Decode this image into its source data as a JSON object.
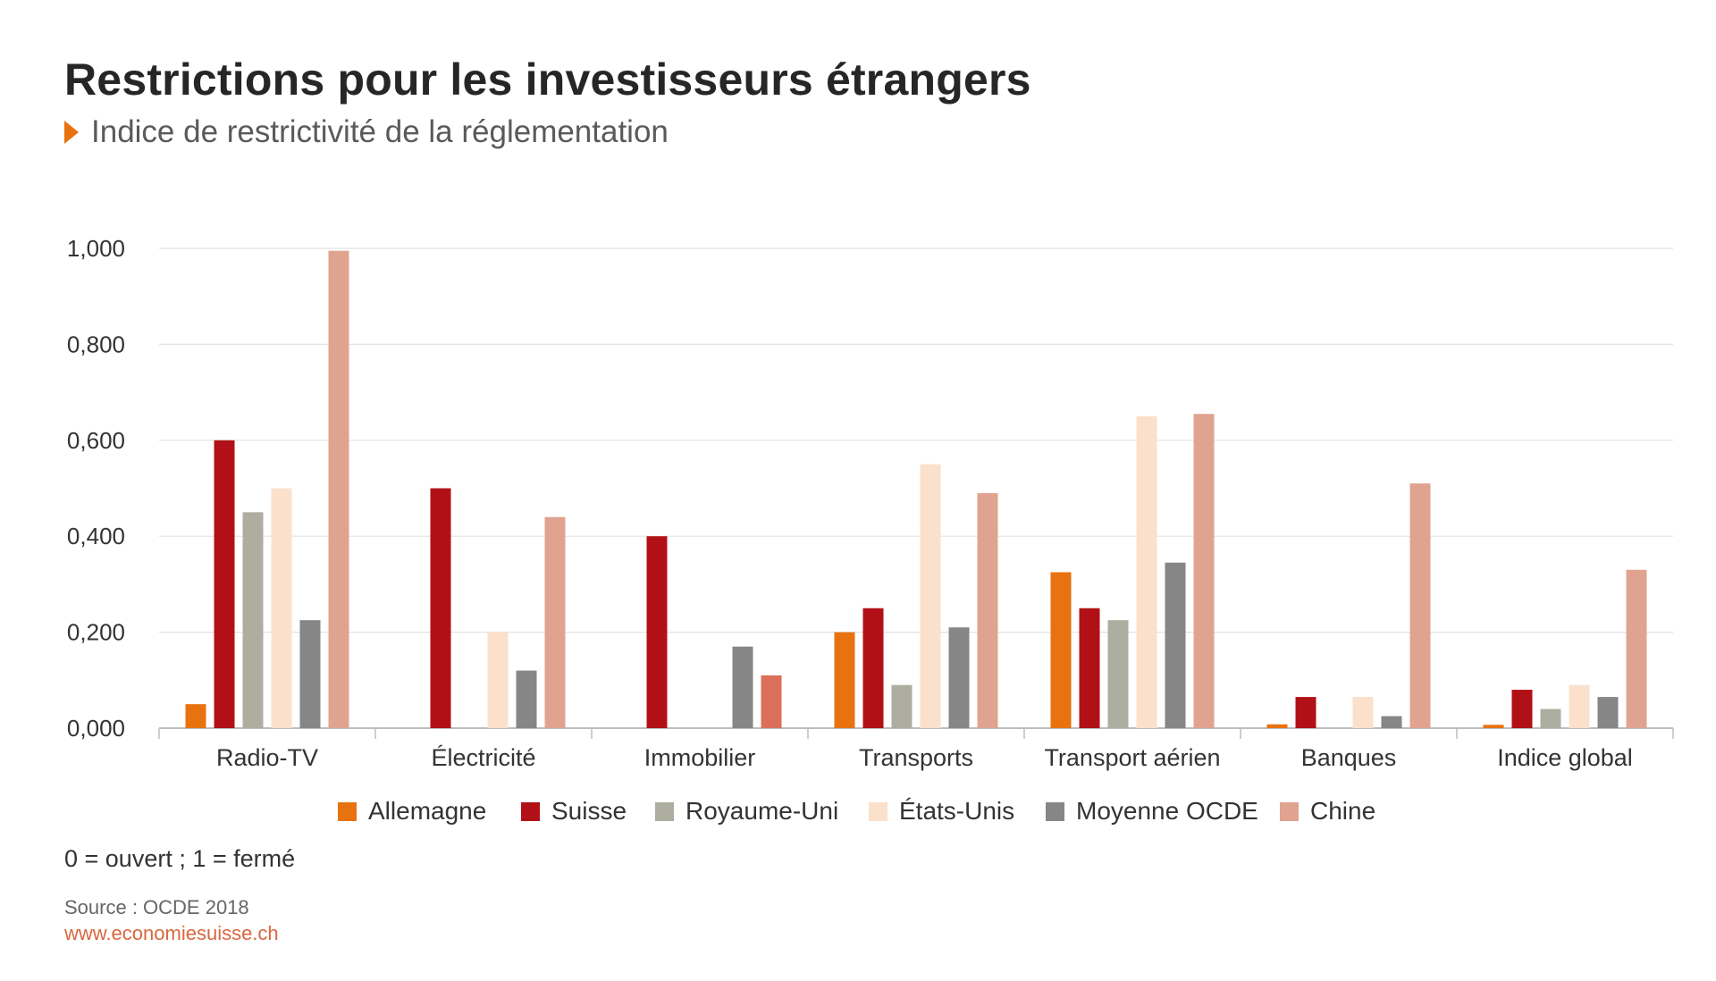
{
  "header": {
    "title": "Restrictions pour les investisseurs étrangers",
    "subtitle": "Indice de restrictivité de la réglementation"
  },
  "chart_data": {
    "type": "bar",
    "categories": [
      "Radio-TV",
      "Électricité",
      "Immobilier",
      "Transports",
      "Transport aérien",
      "Banques",
      "Indice global"
    ],
    "ylim": [
      0,
      1
    ],
    "yticks": [
      "0,000",
      "0,200",
      "0,400",
      "0,600",
      "0,800",
      "1,000"
    ],
    "grid": true,
    "legend_position": "bottom",
    "series": [
      {
        "name": "Allemagne",
        "color": "#e8720f",
        "values": [
          0.05,
          0,
          0,
          0.2,
          0.325,
          0.008,
          0.007
        ]
      },
      {
        "name": "Suisse",
        "color": "#b11116",
        "values": [
          0.6,
          0.5,
          0.4,
          0.25,
          0.25,
          0.065,
          0.08
        ]
      },
      {
        "name": "Royaume-Uni",
        "color": "#adada0",
        "values": [
          0.45,
          0,
          0,
          0.09,
          0.225,
          0,
          0.04
        ]
      },
      {
        "name": "États-Unis",
        "color": "#fbe0cc",
        "values": [
          0.5,
          0.2,
          0,
          0.55,
          0.65,
          0.065,
          0.09
        ]
      },
      {
        "name": "Moyenne OCDE",
        "color": "#868686",
        "values": [
          0.225,
          0.12,
          0.17,
          0.21,
          0.345,
          0.025,
          0.065
        ]
      },
      {
        "name": "Chine",
        "color": "#e0a390",
        "values": [
          0.995,
          0.44,
          0.11,
          0.49,
          0.655,
          0.51,
          0.33
        ]
      }
    ],
    "highlight_colors": {
      "Immobilier.Chine": "#db705a"
    }
  },
  "footer": {
    "note": "0 = ouvert ; 1 = fermé",
    "source": "Source : OCDE 2018",
    "url": "www.economiesuisse.ch"
  }
}
